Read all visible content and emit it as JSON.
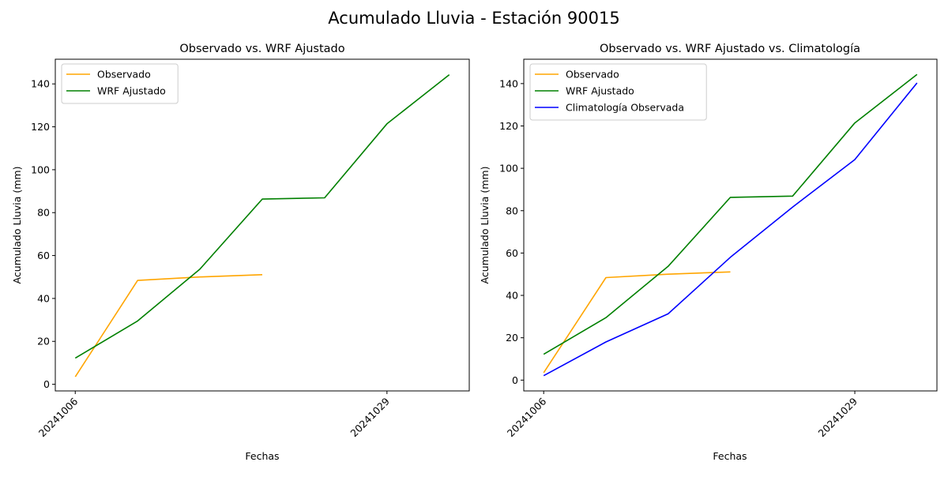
{
  "figure": {
    "title": "Acumulado Lluvia - Estación 90015"
  },
  "chart_data": [
    {
      "type": "line",
      "title": "Observado vs. WRF Ajustado",
      "xlabel": "Fechas",
      "ylabel": "Acumulado Lluvia (mm)",
      "x_tick_labels": [
        "20241006",
        "20241029"
      ],
      "x_tick_positions": [
        0,
        5
      ],
      "yticks": [
        0,
        20,
        40,
        60,
        80,
        100,
        120,
        140
      ],
      "xlim": [
        -0.32,
        6.32
      ],
      "ylim": [
        -3.1,
        151.5
      ],
      "legend_placement": "upper-left",
      "grid": false,
      "series": [
        {
          "name": "Observado",
          "color": "#FFA500",
          "x": [
            0,
            1,
            2,
            3
          ],
          "y": [
            3.5,
            48.4,
            50.0,
            51.1
          ]
        },
        {
          "name": "WRF Ajustado",
          "color": "#008000",
          "x": [
            0,
            1,
            2,
            3,
            4,
            5,
            6
          ],
          "y": [
            12.2,
            29.5,
            53.7,
            86.3,
            86.9,
            121.4,
            144.3
          ]
        }
      ]
    },
    {
      "type": "line",
      "title": "Observado vs. WRF Ajustado vs. Climatología",
      "xlabel": "Fechas",
      "ylabel": "Acumulado Lluvia (mm)",
      "x_tick_labels": [
        "20241006",
        "20241029"
      ],
      "x_tick_positions": [
        0,
        5
      ],
      "yticks": [
        0,
        20,
        40,
        60,
        80,
        100,
        120,
        140
      ],
      "xlim": [
        -0.32,
        6.32
      ],
      "ylim": [
        -5.1,
        151.5
      ],
      "legend_placement": "upper-left",
      "grid": false,
      "series": [
        {
          "name": "Observado",
          "color": "#FFA500",
          "x": [
            0,
            1,
            2,
            3
          ],
          "y": [
            3.5,
            48.4,
            50.0,
            51.1
          ]
        },
        {
          "name": "WRF Ajustado",
          "color": "#008000",
          "x": [
            0,
            1,
            2,
            3,
            4,
            5,
            6
          ],
          "y": [
            12.2,
            29.5,
            53.7,
            86.3,
            86.9,
            121.4,
            144.3
          ]
        },
        {
          "name": "Climatología Observada",
          "color": "#0000FF",
          "x": [
            0,
            1,
            2,
            3,
            4,
            5,
            6
          ],
          "y": [
            2.1,
            18.0,
            31.3,
            58.0,
            81.7,
            104.1,
            140.3
          ]
        }
      ]
    }
  ]
}
